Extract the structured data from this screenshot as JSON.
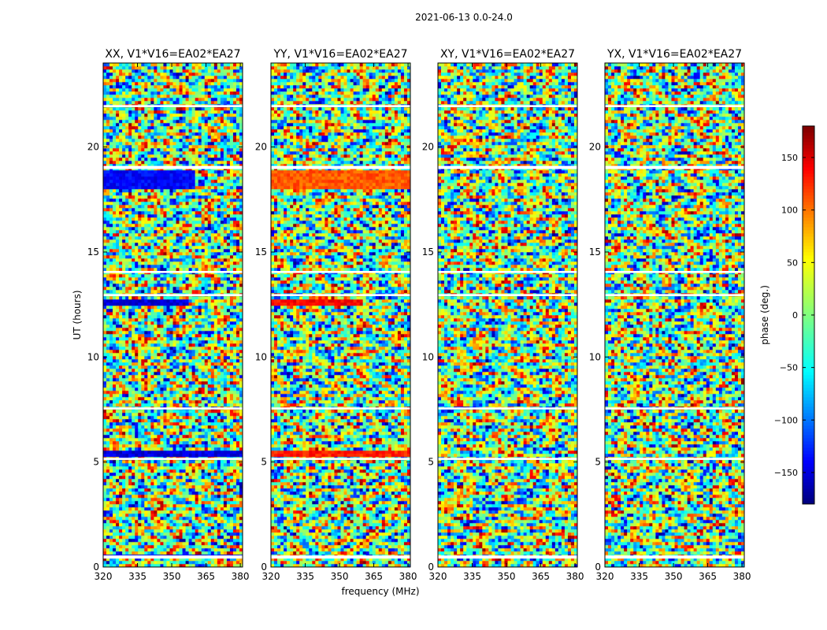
{
  "figure": {
    "suptitle": "2021-06-13 0.0-24.0",
    "xlabel": "frequency (MHz)",
    "ylabel": "UT (hours)",
    "colorbar_label": "phase (deg.)"
  },
  "colormap": {
    "name": "jet",
    "stops": [
      "#00007f",
      "#0000ff",
      "#00ffff",
      "#ffff00",
      "#ff0000",
      "#7f0000"
    ]
  },
  "chart_data": [
    {
      "type": "heatmap",
      "title": "XX, V1*V16=EA02*EA27",
      "xlim": [
        320,
        381
      ],
      "ylim": [
        0,
        24
      ],
      "xticks": [
        320,
        335,
        350,
        365,
        380
      ],
      "yticks": [
        0,
        5,
        10,
        15,
        20
      ],
      "xlabel": "frequency (MHz)",
      "ylabel": "UT (hours)",
      "value_range": [
        -180,
        180
      ],
      "value_label": "phase (deg.)",
      "blanked_intervals_hours": [
        [
          0.4,
          0.55
        ],
        [
          5.1,
          5.2
        ],
        [
          7.5,
          7.6
        ],
        [
          12.9,
          13.0
        ],
        [
          14.0,
          14.1
        ],
        [
          18.95,
          19.1
        ],
        [
          21.9,
          22.0
        ]
      ],
      "features": [
        {
          "ut_range": [
            12.4,
            12.8
          ],
          "freq_range": [
            320,
            357
          ],
          "phase_deg": -150
        },
        {
          "ut_range": [
            5.25,
            5.6
          ],
          "freq_range": [
            320,
            381
          ],
          "phase_deg": -150
        },
        {
          "ut_range": [
            18.0,
            18.9
          ],
          "freq_range": [
            320,
            360
          ],
          "phase_deg": -140
        },
        {
          "ut_range": [
            0.45,
            0.65
          ],
          "freq_range": [
            320,
            381
          ],
          "phase_deg": -140
        }
      ]
    },
    {
      "type": "heatmap",
      "title": "YY, V1*V16=EA02*EA27",
      "xlim": [
        320,
        381
      ],
      "ylim": [
        0,
        24
      ],
      "xticks": [
        320,
        335,
        350,
        365,
        380
      ],
      "yticks": [
        0,
        5,
        10,
        15,
        20
      ],
      "xlabel": "frequency (MHz)",
      "ylabel": "",
      "value_range": [
        -180,
        180
      ],
      "value_label": "phase (deg.)",
      "blanked_intervals_hours": [
        [
          0.4,
          0.55
        ],
        [
          5.1,
          5.2
        ],
        [
          7.5,
          7.6
        ],
        [
          12.9,
          13.0
        ],
        [
          14.0,
          14.1
        ],
        [
          18.95,
          19.1
        ],
        [
          21.9,
          22.0
        ]
      ],
      "features": [
        {
          "ut_range": [
            12.4,
            12.8
          ],
          "freq_range": [
            320,
            360
          ],
          "phase_deg": 140
        },
        {
          "ut_range": [
            5.3,
            5.6
          ],
          "freq_range": [
            320,
            381
          ],
          "phase_deg": 130
        },
        {
          "ut_range": [
            18.0,
            18.9
          ],
          "freq_range": [
            320,
            381
          ],
          "phase_deg": 110
        }
      ]
    },
    {
      "type": "heatmap",
      "title": "XY, V1*V16=EA02*EA27",
      "xlim": [
        320,
        381
      ],
      "ylim": [
        0,
        24
      ],
      "xticks": [
        320,
        335,
        350,
        365,
        380
      ],
      "yticks": [
        0,
        5,
        10,
        15,
        20
      ],
      "xlabel": "frequency (MHz)",
      "ylabel": "",
      "value_range": [
        -180,
        180
      ],
      "value_label": "phase (deg.)",
      "blanked_intervals_hours": [
        [
          0.4,
          0.55
        ],
        [
          5.1,
          5.2
        ],
        [
          7.5,
          7.6
        ],
        [
          12.9,
          13.0
        ],
        [
          14.0,
          14.1
        ],
        [
          18.95,
          19.1
        ],
        [
          21.9,
          22.0
        ]
      ],
      "features": []
    },
    {
      "type": "heatmap",
      "title": "YX, V1*V16=EA02*EA27",
      "xlim": [
        320,
        381
      ],
      "ylim": [
        0,
        24
      ],
      "xticks": [
        320,
        335,
        350,
        365,
        380
      ],
      "yticks": [
        0,
        5,
        10,
        15,
        20
      ],
      "xlabel": "frequency (MHz)",
      "ylabel": "",
      "value_range": [
        -180,
        180
      ],
      "value_label": "phase (deg.)",
      "blanked_intervals_hours": [
        [
          0.4,
          0.55
        ],
        [
          5.1,
          5.2
        ],
        [
          7.5,
          7.6
        ],
        [
          12.9,
          13.0
        ],
        [
          14.0,
          14.1
        ],
        [
          18.95,
          19.1
        ],
        [
          21.9,
          22.0
        ]
      ],
      "features": []
    }
  ],
  "colorbar": {
    "range": [
      -180,
      180
    ],
    "ticks": [
      -150,
      -100,
      -50,
      0,
      50,
      100,
      150
    ],
    "tick_labels": [
      "−150",
      "−100",
      "−50",
      "0",
      "50",
      "100",
      "150"
    ]
  }
}
